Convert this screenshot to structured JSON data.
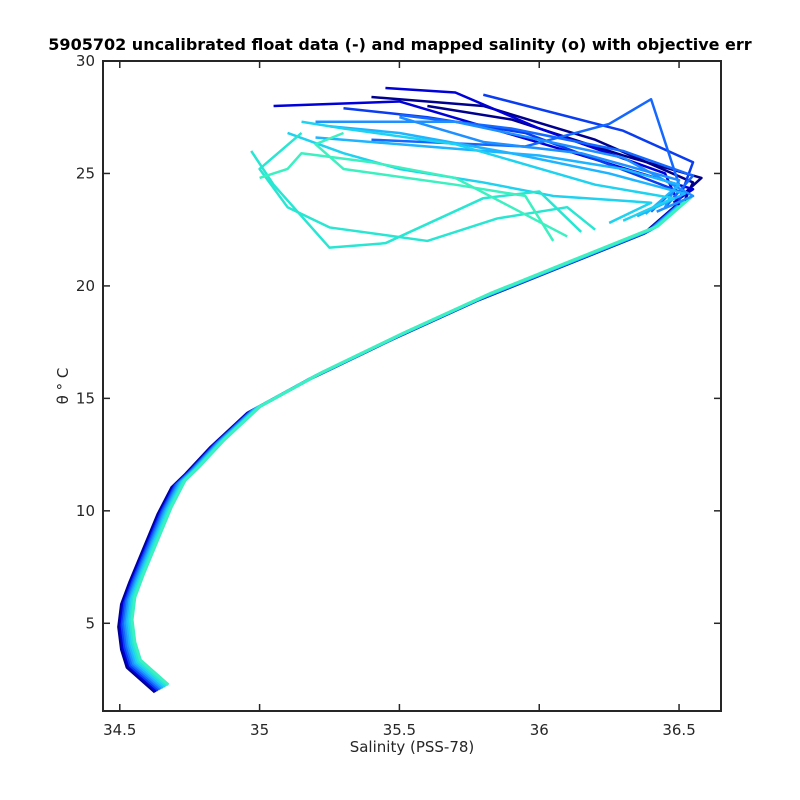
{
  "chart_data": {
    "type": "line",
    "title": "5905702 uncalibrated float data (-) and mapped salinity (o) with objective err",
    "xlabel": "Salinity (PSS-78)",
    "ylabel": "θ ° C",
    "xlim": [
      34.44,
      36.65
    ],
    "ylim": [
      1.1,
      30
    ],
    "x_ticks": [
      34.5,
      35,
      35.5,
      36,
      36.5
    ],
    "x_tick_labels": [
      "34.5",
      "35",
      "35.5",
      "36",
      "36.5"
    ],
    "y_ticks": [
      5,
      10,
      15,
      20,
      25,
      30
    ],
    "y_tick_labels": [
      "5",
      "10",
      "15",
      "20",
      "25",
      "30"
    ],
    "grid": false,
    "colormap": [
      "#00008c",
      "#0000d8",
      "#0a3cf0",
      "#1468ff",
      "#1e90ff",
      "#1eb4ff",
      "#1ed2f0",
      "#28e6d2",
      "#3cf0c0"
    ],
    "deep_profile_points": [
      {
        "x": 34.65,
        "y": 2.1
      },
      {
        "x": 34.55,
        "y": 3.2
      },
      {
        "x": 34.53,
        "y": 4.0
      },
      {
        "x": 34.52,
        "y": 5.0
      },
      {
        "x": 34.53,
        "y": 6.0
      },
      {
        "x": 34.56,
        "y": 7.0
      },
      {
        "x": 34.61,
        "y": 8.5
      },
      {
        "x": 34.66,
        "y": 10.0
      },
      {
        "x": 34.71,
        "y": 11.2
      },
      {
        "x": 34.76,
        "y": 11.8
      },
      {
        "x": 34.85,
        "y": 13.0
      },
      {
        "x": 34.98,
        "y": 14.5
      },
      {
        "x": 35.2,
        "y": 16.0
      },
      {
        "x": 35.5,
        "y": 17.8
      },
      {
        "x": 35.8,
        "y": 19.5
      },
      {
        "x": 36.1,
        "y": 21.0
      },
      {
        "x": 36.4,
        "y": 22.5
      },
      {
        "x": 36.52,
        "y": 23.8
      }
    ],
    "surface_profiles": [
      {
        "c": 0,
        "pts": [
          [
            36.52,
            23.8
          ],
          [
            36.55,
            24.6
          ],
          [
            36.2,
            26.5
          ],
          [
            35.8,
            28.0
          ],
          [
            35.4,
            28.4
          ]
        ]
      },
      {
        "c": 0,
        "pts": [
          [
            36.5,
            23.9
          ],
          [
            36.58,
            24.8
          ],
          [
            36.3,
            25.8
          ],
          [
            35.9,
            27.4
          ],
          [
            35.6,
            28.0
          ]
        ]
      },
      {
        "c": 1,
        "pts": [
          [
            36.48,
            23.7
          ],
          [
            36.55,
            24.3
          ],
          [
            36.1,
            26.0
          ],
          [
            35.5,
            28.2
          ],
          [
            35.05,
            28.0
          ]
        ]
      },
      {
        "c": 1,
        "pts": [
          [
            36.5,
            23.6
          ],
          [
            36.45,
            25.0
          ],
          [
            36.0,
            27.0
          ],
          [
            35.7,
            28.6
          ],
          [
            35.45,
            28.8
          ]
        ]
      },
      {
        "c": 2,
        "pts": [
          [
            36.45,
            23.5
          ],
          [
            36.5,
            24.2
          ],
          [
            36.25,
            25.4
          ],
          [
            35.95,
            26.8
          ],
          [
            35.6,
            27.5
          ],
          [
            35.3,
            27.9
          ]
        ]
      },
      {
        "c": 2,
        "pts": [
          [
            36.5,
            23.8
          ],
          [
            36.55,
            25.5
          ],
          [
            36.3,
            26.9
          ],
          [
            35.8,
            28.5
          ]
        ]
      },
      {
        "c": 3,
        "pts": [
          [
            36.45,
            23.5
          ],
          [
            36.55,
            24.9
          ],
          [
            36.3,
            26.0
          ],
          [
            35.9,
            27.0
          ],
          [
            35.5,
            27.6
          ]
        ]
      },
      {
        "c": 3,
        "pts": [
          [
            36.4,
            23.3
          ],
          [
            36.5,
            24.5
          ],
          [
            36.4,
            28.3
          ],
          [
            36.25,
            27.2
          ],
          [
            35.95,
            26.2
          ],
          [
            35.4,
            26.5
          ]
        ]
      },
      {
        "c": 4,
        "pts": [
          [
            36.42,
            23.3
          ],
          [
            36.55,
            24.0
          ],
          [
            36.3,
            25.7
          ],
          [
            36.0,
            26.5
          ],
          [
            35.7,
            27.3
          ],
          [
            35.2,
            27.3
          ]
        ]
      },
      {
        "c": 4,
        "pts": [
          [
            36.45,
            23.5
          ],
          [
            36.5,
            24.7
          ],
          [
            36.15,
            25.9
          ],
          [
            35.8,
            26.4
          ],
          [
            35.5,
            27.5
          ]
        ]
      },
      {
        "c": 5,
        "pts": [
          [
            36.38,
            23.2
          ],
          [
            36.5,
            24.5
          ],
          [
            36.3,
            25.2
          ],
          [
            36.0,
            25.8
          ],
          [
            35.6,
            26.2
          ],
          [
            35.2,
            26.6
          ]
        ]
      },
      {
        "c": 5,
        "pts": [
          [
            36.35,
            23.1
          ],
          [
            36.52,
            24.1
          ],
          [
            36.25,
            25.0
          ],
          [
            35.9,
            25.9
          ],
          [
            35.5,
            26.8
          ],
          [
            35.25,
            27.1
          ]
        ]
      },
      {
        "c": 6,
        "pts": [
          [
            36.3,
            22.9
          ],
          [
            36.48,
            23.9
          ],
          [
            36.2,
            24.5
          ],
          [
            35.95,
            25.4
          ],
          [
            35.7,
            26.3
          ],
          [
            35.3,
            27.0
          ],
          [
            35.15,
            27.3
          ]
        ]
      },
      {
        "c": 6,
        "pts": [
          [
            36.25,
            22.8
          ],
          [
            36.4,
            23.7
          ],
          [
            36.05,
            24.0
          ],
          [
            35.8,
            24.6
          ],
          [
            35.5,
            25.2
          ],
          [
            35.3,
            25.9
          ],
          [
            35.1,
            26.8
          ]
        ]
      },
      {
        "c": 7,
        "pts": [
          [
            36.2,
            22.5
          ],
          [
            36.1,
            23.5
          ],
          [
            35.85,
            23.0
          ],
          [
            35.6,
            22.0
          ],
          [
            35.25,
            22.6
          ],
          [
            35.1,
            23.5
          ],
          [
            35.0,
            25.2
          ],
          [
            35.15,
            26.8
          ]
        ]
      },
      {
        "c": 7,
        "pts": [
          [
            36.15,
            22.4
          ],
          [
            36.0,
            24.2
          ],
          [
            35.8,
            23.9
          ],
          [
            35.45,
            21.9
          ],
          [
            35.25,
            21.7
          ],
          [
            35.05,
            24.5
          ],
          [
            34.97,
            26.0
          ]
        ]
      },
      {
        "c": 8,
        "pts": [
          [
            36.1,
            22.2
          ],
          [
            35.9,
            23.5
          ],
          [
            35.7,
            24.8
          ],
          [
            35.4,
            25.5
          ],
          [
            35.15,
            25.9
          ],
          [
            35.1,
            25.2
          ],
          [
            35.0,
            24.8
          ]
        ]
      },
      {
        "c": 8,
        "pts": [
          [
            36.05,
            22.0
          ],
          [
            35.95,
            24.0
          ],
          [
            35.7,
            24.5
          ],
          [
            35.3,
            25.2
          ],
          [
            35.2,
            26.3
          ],
          [
            35.3,
            26.8
          ]
        ]
      }
    ]
  }
}
